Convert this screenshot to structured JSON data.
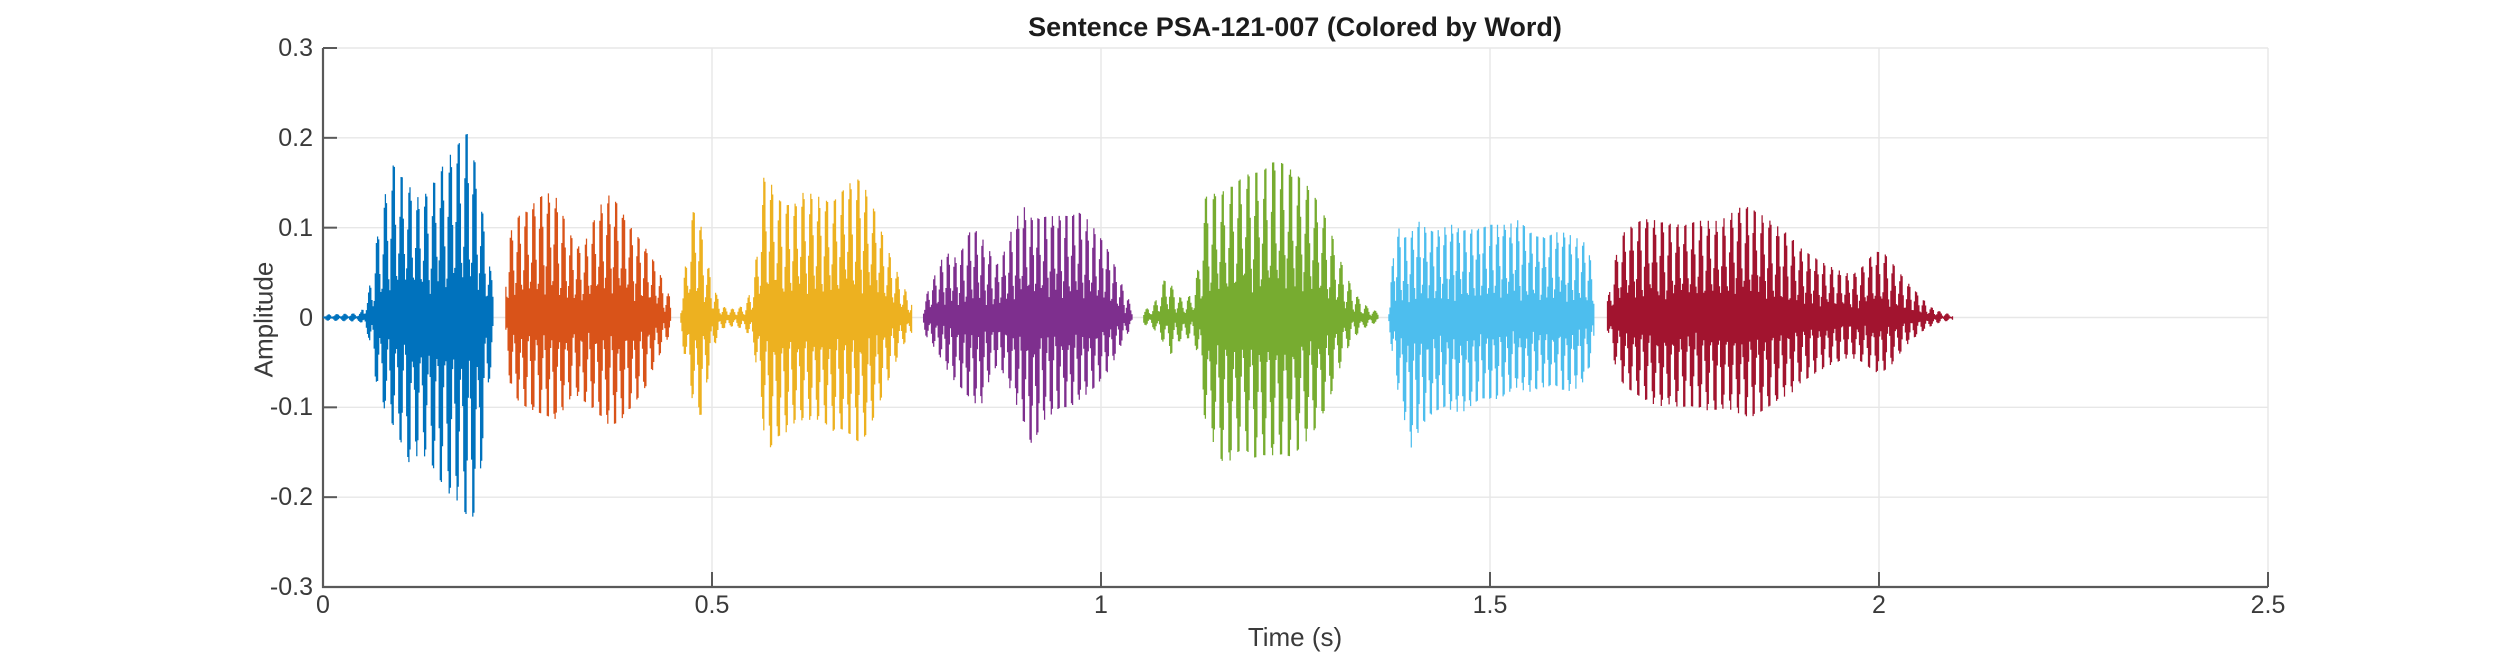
{
  "figure": {
    "title": "Sentence PSA-121-007 (Colored by Word)",
    "xlabel": "Time (s)",
    "ylabel": "Amplitude",
    "style": {
      "background": "#ffffff",
      "axis_color": "#595959",
      "grid_color": "#e7e7e7",
      "tick_label_color": "#3a3a3a",
      "title_color": "#1c1c1c"
    }
  },
  "chart_data": {
    "type": "line",
    "subtype": "audio-waveform-colored-by-word",
    "title": "Sentence PSA-121-007 (Colored by Word)",
    "xlabel": "Time (s)",
    "ylabel": "Amplitude",
    "xlim": [
      0,
      2.5
    ],
    "ylim": [
      -0.3,
      0.3
    ],
    "xticks": [
      0,
      0.5,
      1,
      1.5,
      2,
      2.5
    ],
    "xticklabels": [
      "0",
      "0.5",
      "1",
      "1.5",
      "2",
      "2.5"
    ],
    "yticks": [
      -0.3,
      -0.2,
      -0.1,
      0,
      0.1,
      0.2,
      0.3
    ],
    "yticklabels": [
      "-0.3",
      "-0.2",
      "-0.1",
      "0",
      "0.1",
      "0.2",
      "0.3"
    ],
    "grid": true,
    "legend": false,
    "n_words": 7,
    "series": [
      {
        "name": "word-1",
        "color": "#0072BD",
        "t_start": 0.0,
        "t_end": 0.219,
        "pitch_hz": 96,
        "envelope": [
          [
            0.0,
            0.004,
            0.004
          ],
          [
            0.048,
            0.005,
            0.005
          ],
          [
            0.058,
            0.025,
            0.02
          ],
          [
            0.068,
            0.08,
            0.07
          ],
          [
            0.078,
            0.13,
            0.1
          ],
          [
            0.09,
            0.17,
            0.12
          ],
          [
            0.1,
            0.16,
            0.14
          ],
          [
            0.112,
            0.15,
            0.17
          ],
          [
            0.125,
            0.14,
            0.16
          ],
          [
            0.138,
            0.16,
            0.18
          ],
          [
            0.15,
            0.19,
            0.21
          ],
          [
            0.163,
            0.22,
            0.24
          ],
          [
            0.175,
            0.245,
            0.26
          ],
          [
            0.185,
            0.265,
            0.285
          ],
          [
            0.193,
            0.24,
            0.29
          ],
          [
            0.2,
            0.2,
            0.25
          ],
          [
            0.208,
            0.13,
            0.17
          ],
          [
            0.214,
            0.08,
            0.09
          ],
          [
            0.219,
            0.04,
            0.04
          ]
        ]
      },
      {
        "name": "word-2",
        "color": "#D95319",
        "t_start": 0.234,
        "t_end": 0.447,
        "pitch_hz": 104,
        "envelope": [
          [
            0.234,
            0.06,
            0.05
          ],
          [
            0.242,
            0.1,
            0.08
          ],
          [
            0.252,
            0.12,
            0.1
          ],
          [
            0.263,
            0.13,
            0.11
          ],
          [
            0.275,
            0.15,
            0.12
          ],
          [
            0.287,
            0.165,
            0.13
          ],
          [
            0.298,
            0.17,
            0.14
          ],
          [
            0.31,
            0.14,
            0.13
          ],
          [
            0.322,
            0.11,
            0.11
          ],
          [
            0.333,
            0.1,
            0.12
          ],
          [
            0.344,
            0.13,
            0.13
          ],
          [
            0.356,
            0.16,
            0.14
          ],
          [
            0.368,
            0.17,
            0.15
          ],
          [
            0.38,
            0.15,
            0.14
          ],
          [
            0.392,
            0.12,
            0.12
          ],
          [
            0.404,
            0.1,
            0.1
          ],
          [
            0.416,
            0.08,
            0.08
          ],
          [
            0.428,
            0.06,
            0.05
          ],
          [
            0.44,
            0.035,
            0.03
          ],
          [
            0.447,
            0.02,
            0.015
          ]
        ]
      },
      {
        "name": "word-3",
        "color": "#EDB120",
        "t_start": 0.459,
        "t_end": 0.757,
        "pitch_hz": 99,
        "envelope": [
          [
            0.459,
            0.015,
            0.015
          ],
          [
            0.466,
            0.06,
            0.05
          ],
          [
            0.473,
            0.11,
            0.09
          ],
          [
            0.479,
            0.14,
            0.11
          ],
          [
            0.486,
            0.11,
            0.12
          ],
          [
            0.494,
            0.07,
            0.08
          ],
          [
            0.502,
            0.04,
            0.04
          ],
          [
            0.512,
            0.015,
            0.015
          ],
          [
            0.528,
            0.012,
            0.012
          ],
          [
            0.543,
            0.018,
            0.018
          ],
          [
            0.553,
            0.05,
            0.04
          ],
          [
            0.561,
            0.13,
            0.1
          ],
          [
            0.567,
            0.21,
            0.17
          ],
          [
            0.574,
            0.2,
            0.19
          ],
          [
            0.583,
            0.17,
            0.17
          ],
          [
            0.594,
            0.155,
            0.16
          ],
          [
            0.606,
            0.15,
            0.14
          ],
          [
            0.618,
            0.16,
            0.13
          ],
          [
            0.63,
            0.15,
            0.125
          ],
          [
            0.642,
            0.14,
            0.12
          ],
          [
            0.654,
            0.13,
            0.13
          ],
          [
            0.666,
            0.14,
            0.125
          ],
          [
            0.678,
            0.15,
            0.13
          ],
          [
            0.69,
            0.155,
            0.14
          ],
          [
            0.7,
            0.14,
            0.13
          ],
          [
            0.71,
            0.12,
            0.11
          ],
          [
            0.722,
            0.09,
            0.085
          ],
          [
            0.734,
            0.065,
            0.06
          ],
          [
            0.746,
            0.04,
            0.035
          ],
          [
            0.757,
            0.02,
            0.02
          ]
        ]
      },
      {
        "name": "word-4",
        "color": "#7E2F8E",
        "t_start": 0.771,
        "t_end": 1.04,
        "pitch_hz": 112,
        "envelope": [
          [
            0.771,
            0.02,
            0.02
          ],
          [
            0.78,
            0.045,
            0.035
          ],
          [
            0.79,
            0.07,
            0.05
          ],
          [
            0.8,
            0.095,
            0.07
          ],
          [
            0.81,
            0.08,
            0.085
          ],
          [
            0.822,
            0.09,
            0.095
          ],
          [
            0.834,
            0.115,
            0.105
          ],
          [
            0.845,
            0.1,
            0.11
          ],
          [
            0.856,
            0.08,
            0.075
          ],
          [
            0.866,
            0.06,
            0.055
          ],
          [
            0.876,
            0.075,
            0.065
          ],
          [
            0.888,
            0.105,
            0.09
          ],
          [
            0.9,
            0.125,
            0.115
          ],
          [
            0.912,
            0.11,
            0.145
          ],
          [
            0.924,
            0.115,
            0.12
          ],
          [
            0.936,
            0.12,
            0.115
          ],
          [
            0.948,
            0.125,
            0.11
          ],
          [
            0.96,
            0.13,
            0.115
          ],
          [
            0.972,
            0.14,
            0.11
          ],
          [
            0.984,
            0.135,
            0.105
          ],
          [
            0.996,
            0.12,
            0.095
          ],
          [
            1.008,
            0.1,
            0.08
          ],
          [
            1.018,
            0.075,
            0.06
          ],
          [
            1.028,
            0.045,
            0.035
          ],
          [
            1.04,
            0.015,
            0.012
          ]
        ]
      },
      {
        "name": "word-5",
        "color": "#77AC30",
        "t_start": 1.054,
        "t_end": 1.357,
        "pitch_hz": 92,
        "envelope": [
          [
            1.054,
            0.008,
            0.008
          ],
          [
            1.066,
            0.015,
            0.012
          ],
          [
            1.076,
            0.03,
            0.025
          ],
          [
            1.084,
            0.06,
            0.04
          ],
          [
            1.09,
            0.045,
            0.05
          ],
          [
            1.098,
            0.03,
            0.035
          ],
          [
            1.108,
            0.025,
            0.03
          ],
          [
            1.118,
            0.035,
            0.03
          ],
          [
            1.126,
            0.08,
            0.06
          ],
          [
            1.132,
            0.17,
            0.14
          ],
          [
            1.14,
            0.185,
            0.17
          ],
          [
            1.15,
            0.175,
            0.195
          ],
          [
            1.16,
            0.18,
            0.21
          ],
          [
            1.172,
            0.18,
            0.185
          ],
          [
            1.184,
            0.185,
            0.17
          ],
          [
            1.196,
            0.18,
            0.175
          ],
          [
            1.208,
            0.175,
            0.165
          ],
          [
            1.22,
            0.18,
            0.16
          ],
          [
            1.232,
            0.175,
            0.155
          ],
          [
            1.244,
            0.165,
            0.155
          ],
          [
            1.256,
            0.155,
            0.145
          ],
          [
            1.268,
            0.145,
            0.135
          ],
          [
            1.28,
            0.13,
            0.12
          ],
          [
            1.292,
            0.11,
            0.1
          ],
          [
            1.302,
            0.085,
            0.075
          ],
          [
            1.312,
            0.06,
            0.05
          ],
          [
            1.322,
            0.04,
            0.03
          ],
          [
            1.334,
            0.022,
            0.018
          ],
          [
            1.346,
            0.012,
            0.01
          ],
          [
            1.357,
            0.008,
            0.007
          ]
        ]
      },
      {
        "name": "word-6",
        "color": "#4DBEEE",
        "t_start": 1.369,
        "t_end": 1.634,
        "pitch_hz": 118,
        "envelope": [
          [
            1.369,
            0.01,
            0.01
          ],
          [
            1.374,
            0.06,
            0.04
          ],
          [
            1.379,
            0.125,
            0.08
          ],
          [
            1.385,
            0.1,
            0.1
          ],
          [
            1.392,
            0.095,
            0.13
          ],
          [
            1.4,
            0.1,
            0.155
          ],
          [
            1.408,
            0.11,
            0.13
          ],
          [
            1.418,
            0.1,
            0.115
          ],
          [
            1.428,
            0.095,
            0.105
          ],
          [
            1.44,
            0.1,
            0.1
          ],
          [
            1.452,
            0.105,
            0.105
          ],
          [
            1.464,
            0.1,
            0.11
          ],
          [
            1.476,
            0.105,
            0.105
          ],
          [
            1.488,
            0.11,
            0.1
          ],
          [
            1.5,
            0.12,
            0.105
          ],
          [
            1.512,
            0.125,
            0.11
          ],
          [
            1.524,
            0.13,
            0.105
          ],
          [
            1.536,
            0.14,
            0.1
          ],
          [
            1.548,
            0.13,
            0.11
          ],
          [
            1.56,
            0.12,
            0.105
          ],
          [
            1.572,
            0.115,
            0.1
          ],
          [
            1.584,
            0.12,
            0.095
          ],
          [
            1.596,
            0.115,
            0.1
          ],
          [
            1.608,
            0.105,
            0.095
          ],
          [
            1.62,
            0.095,
            0.08
          ],
          [
            1.628,
            0.075,
            0.06
          ],
          [
            1.634,
            0.05,
            0.04
          ]
        ]
      },
      {
        "name": "word-7",
        "color": "#A2142F",
        "t_start": 1.65,
        "t_end": 2.095,
        "pitch_hz": 101,
        "envelope": [
          [
            1.65,
            0.015,
            0.012
          ],
          [
            1.658,
            0.06,
            0.05
          ],
          [
            1.666,
            0.1,
            0.08
          ],
          [
            1.674,
            0.12,
            0.095
          ],
          [
            1.684,
            0.13,
            0.105
          ],
          [
            1.694,
            0.14,
            0.115
          ],
          [
            1.706,
            0.145,
            0.125
          ],
          [
            1.718,
            0.14,
            0.13
          ],
          [
            1.73,
            0.135,
            0.125
          ],
          [
            1.742,
            0.13,
            0.125
          ],
          [
            1.754,
            0.125,
            0.12
          ],
          [
            1.766,
            0.125,
            0.115
          ],
          [
            1.778,
            0.12,
            0.115
          ],
          [
            1.79,
            0.115,
            0.11
          ],
          [
            1.802,
            0.115,
            0.105
          ],
          [
            1.814,
            0.12,
            0.105
          ],
          [
            1.826,
            0.125,
            0.11
          ],
          [
            1.838,
            0.12,
            0.11
          ],
          [
            1.85,
            0.115,
            0.105
          ],
          [
            1.862,
            0.11,
            0.1
          ],
          [
            1.874,
            0.105,
            0.095
          ],
          [
            1.886,
            0.1,
            0.095
          ],
          [
            1.898,
            0.09,
            0.085
          ],
          [
            1.91,
            0.085,
            0.08
          ],
          [
            1.922,
            0.08,
            0.075
          ],
          [
            1.934,
            0.075,
            0.07
          ],
          [
            1.946,
            0.07,
            0.065
          ],
          [
            1.958,
            0.065,
            0.06
          ],
          [
            1.97,
            0.065,
            0.06
          ],
          [
            1.982,
            0.075,
            0.065
          ],
          [
            1.994,
            0.09,
            0.075
          ],
          [
            2.006,
            0.085,
            0.07
          ],
          [
            2.016,
            0.07,
            0.06
          ],
          [
            2.026,
            0.055,
            0.045
          ],
          [
            2.038,
            0.04,
            0.03
          ],
          [
            2.052,
            0.025,
            0.018
          ],
          [
            2.066,
            0.012,
            0.01
          ],
          [
            2.08,
            0.006,
            0.005
          ],
          [
            2.095,
            0.003,
            0.003
          ]
        ]
      }
    ]
  }
}
